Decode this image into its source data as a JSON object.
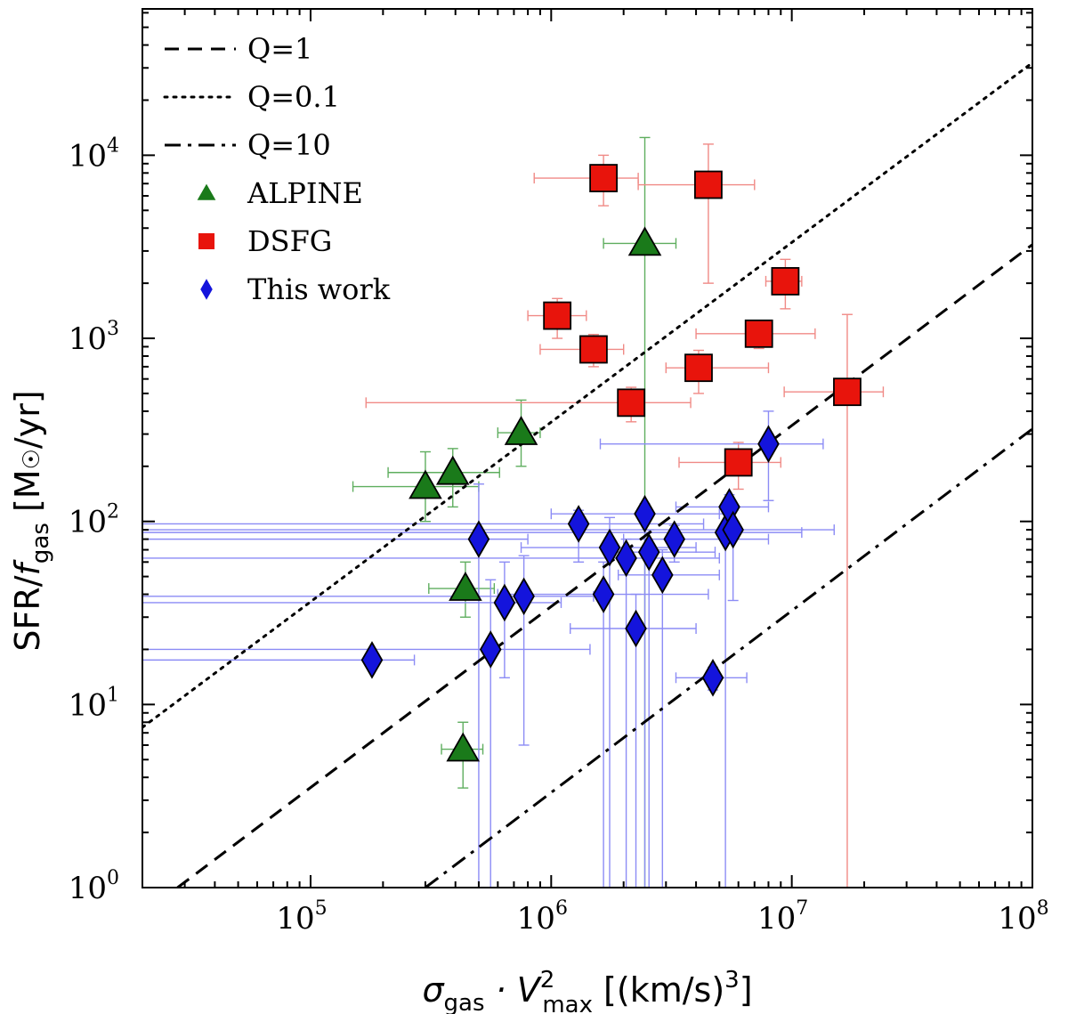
{
  "chart_data": {
    "type": "scatter",
    "xlabel": {
      "base": "σ",
      "sub": "gas",
      "mid": " · V",
      "sup": "2",
      "sub2": "max",
      "unit": " [(km/s)",
      "unit_sup": "3",
      "unit_end": "]"
    },
    "ylabel": {
      "base": "SFR/",
      "italic": "f",
      "sub": "gas",
      "unit": " [M",
      "sun": "☉",
      "unit_end": "/yr]"
    },
    "x_scale": "log",
    "y_scale": "log",
    "xlim": [
      20000,
      100000000
    ],
    "ylim": [
      1,
      63000
    ],
    "x_ticks": [
      {
        "label": "10",
        "exp": "5",
        "value": 100000
      },
      {
        "label": "10",
        "exp": "6",
        "value": 1000000
      },
      {
        "label": "10",
        "exp": "7",
        "value": 10000000
      },
      {
        "label": "10",
        "exp": "8",
        "value": 100000000
      }
    ],
    "y_ticks": [
      {
        "label": "10",
        "exp": "0",
        "value": 1
      },
      {
        "label": "10",
        "exp": "1",
        "value": 10
      },
      {
        "label": "10",
        "exp": "2",
        "value": 100
      },
      {
        "label": "10",
        "exp": "3",
        "value": 1000
      },
      {
        "label": "10",
        "exp": "4",
        "value": 10000
      }
    ],
    "grid": false,
    "legend_position": "top-left",
    "lines": [
      {
        "name": "Q=1",
        "style": "dashed",
        "points": [
          [
            28000,
            1
          ],
          [
            100000000,
            3250
          ]
        ]
      },
      {
        "name": "Q=0.1",
        "style": "dotted",
        "points": [
          [
            20000,
            7.5
          ],
          [
            100000000,
            32000
          ]
        ]
      },
      {
        "name": "Q=10",
        "style": "dashdot",
        "points": [
          [
            300000,
            1
          ],
          [
            100000000,
            320
          ]
        ]
      }
    ],
    "series": [
      {
        "name": "ALPINE",
        "marker": "triangle",
        "color": "#1a7a1a",
        "error_color": "#5fae5f",
        "points": [
          {
            "x": 300000,
            "y": 155,
            "xerr": [
              150000,
              500000
            ],
            "yerr": [
              100,
              240
            ]
          },
          {
            "x": 390000,
            "y": 185,
            "xerr": [
              210000,
              610000
            ],
            "yerr": [
              120,
              250
            ]
          },
          {
            "x": 750000,
            "y": 305,
            "xerr": [
              600000,
              900000
            ],
            "yerr": [
              200,
              460
            ]
          },
          {
            "x": 2450000,
            "y": 3300,
            "xerr": [
              1650000,
              3300000
            ],
            "yerr": [
              1,
              12500
            ]
          },
          {
            "x": 440000,
            "y": 43,
            "xerr": [
              310000,
              580000
            ],
            "yerr": [
              30,
              60
            ]
          },
          {
            "x": 430000,
            "y": 5.7,
            "xerr": [
              350000,
              520000
            ],
            "yerr": [
              3.5,
              8
            ]
          }
        ]
      },
      {
        "name": "DSFG",
        "marker": "square",
        "color": "#e8140c",
        "error_color": "#f08a86",
        "points": [
          {
            "x": 1650000,
            "y": 7500,
            "xerr": [
              850000,
              2300000
            ],
            "yerr": [
              5300,
              10000
            ]
          },
          {
            "x": 4500000,
            "y": 6900,
            "xerr": [
              2300000,
              7000000
            ],
            "yerr": [
              2000,
              11500
            ]
          },
          {
            "x": 9400000,
            "y": 2050,
            "xerr": [
              7800000,
              11000000
            ],
            "yerr": [
              1450,
              2700
            ]
          },
          {
            "x": 1060000,
            "y": 1330,
            "xerr": [
              800000,
              1400000
            ],
            "yerr": [
              1000,
              1650
            ]
          },
          {
            "x": 1500000,
            "y": 870,
            "xerr": [
              900000,
              2000000
            ],
            "yerr": [
              700,
              1050
            ]
          },
          {
            "x": 7300000,
            "y": 1060,
            "xerr": [
              4000000,
              12500000
            ],
            "yerr": [
              880,
              1250
            ]
          },
          {
            "x": 4100000,
            "y": 690,
            "xerr": [
              3000000,
              8000000
            ],
            "yerr": [
              500,
              860
            ]
          },
          {
            "x": 2150000,
            "y": 445,
            "xerr": [
              170000,
              3800000
            ],
            "yerr": [
              350,
              540
            ]
          },
          {
            "x": 17000000,
            "y": 510,
            "xerr": [
              9300000,
              24000000
            ],
            "yerr": [
              1,
              1350
            ]
          },
          {
            "x": 6000000,
            "y": 210,
            "xerr": [
              3400000,
              9000000
            ],
            "yerr": [
              150,
              270
            ]
          }
        ]
      },
      {
        "name": "This work",
        "marker": "diamond",
        "color": "#1414dc",
        "error_color": "#8c8cf5",
        "points": [
          {
            "x": 180000,
            "y": 17.5,
            "xerr": [
              20000,
              270000
            ],
            "yerr": [
              17,
              20
            ]
          },
          {
            "x": 500000,
            "y": 80,
            "xerr": [
              20000,
              800000
            ],
            "yerr": [
              1,
              160
            ]
          },
          {
            "x": 560000,
            "y": 20,
            "xerr": [
              20000,
              1450000
            ],
            "yerr": [
              1,
              48
            ]
          },
          {
            "x": 640000,
            "y": 36,
            "xerr": [
              20000,
              1100000
            ],
            "yerr": [
              14,
              60
            ]
          },
          {
            "x": 770000,
            "y": 39,
            "xerr": [
              20000,
              1500000
            ],
            "yerr": [
              6,
              65
            ]
          },
          {
            "x": 1300000,
            "y": 97,
            "xerr": [
              20000,
              4300000
            ],
            "yerr": [
              60,
              115
            ]
          },
          {
            "x": 1650000,
            "y": 40,
            "xerr": [
              600000,
              4500000
            ],
            "yerr": [
              1,
              60
            ]
          },
          {
            "x": 1750000,
            "y": 72,
            "xerr": [
              750000,
              4000000
            ],
            "yerr": [
              1,
              105
            ]
          },
          {
            "x": 2050000,
            "y": 63,
            "xerr": [
              20000,
              5000000
            ],
            "yerr": [
              1,
              80
            ]
          },
          {
            "x": 2250000,
            "y": 26,
            "xerr": [
              1200000,
              4000000
            ],
            "yerr": [
              1,
              40
            ]
          },
          {
            "x": 2450000,
            "y": 110,
            "xerr": [
              1000000,
              5000000
            ],
            "yerr": [
              1,
              125
            ]
          },
          {
            "x": 2550000,
            "y": 68,
            "xerr": [
              1800000,
              4800000
            ],
            "yerr": [
              1,
              90
            ]
          },
          {
            "x": 2900000,
            "y": 51,
            "xerr": [
              1900000,
              5000000
            ],
            "yerr": [
              1,
              70
            ]
          },
          {
            "x": 3250000,
            "y": 80,
            "xerr": [
              2000000,
              8000000
            ],
            "yerr": [
              60,
              95
            ]
          },
          {
            "x": 4700000,
            "y": 14,
            "xerr": [
              3300000,
              6500000
            ],
            "yerr": [
              12,
              16
            ]
          },
          {
            "x": 5300000,
            "y": 87,
            "xerr": [
              20000,
              11000000
            ],
            "yerr": [
              1,
              110
            ]
          },
          {
            "x": 5500000,
            "y": 120,
            "xerr": [
              3300000,
              8000000
            ],
            "yerr": [
              100,
              140
            ]
          },
          {
            "x": 5700000,
            "y": 90,
            "xerr": [
              20000,
              15000000
            ],
            "yerr": [
              37,
              115
            ]
          },
          {
            "x": 8000000,
            "y": 265,
            "xerr": [
              1600000,
              13500000
            ],
            "yerr": [
              130,
              400
            ]
          }
        ]
      }
    ]
  }
}
